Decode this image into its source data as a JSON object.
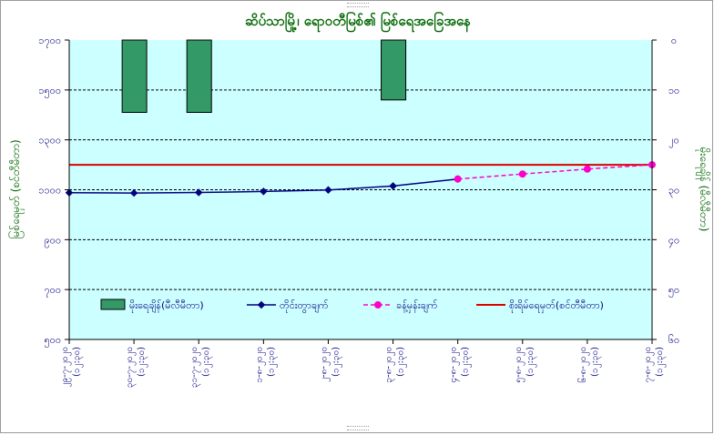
{
  "chart_data": {
    "type": "bar+line",
    "title": "ဆိပ်သာမြို့၊ ရောဝတီမြစ်၏ မြစ်ရေအခြေအနေ",
    "ylabel_left": "မြစ်ရေမှတ် (စင်တီမီတာ)",
    "ylabel_right": "မိုးရေချိန် (မီလီမီတာ)",
    "ylim_left": [
      500,
      1700
    ],
    "ylim_right": [
      60,
      0
    ],
    "left_ticks": [
      "၁၇၀၀",
      "၁၅၀၀",
      "၁၃၀၀",
      "၁၁၀၀",
      "၉၀၀",
      "၇၀၀",
      "၅၀၀"
    ],
    "right_ticks": [
      "၀",
      "၁၀",
      "၂၀",
      "၃၀",
      "၄၀",
      "၅၀",
      "၆၀"
    ],
    "categories": [
      {
        "date": "၂၉-၇-၂၀၂၀",
        "time": "(၁၂:၃၀)"
      },
      {
        "date": "၃၀-၇-၂၀၂၀",
        "time": "(၁၂:၃၀)"
      },
      {
        "date": "၃၁-၇-၂၀၂၀",
        "time": "(၁၂:၃၀)"
      },
      {
        "date": "၁-၈-၂၀၂၀",
        "time": "(၁၂:၃၀)"
      },
      {
        "date": "၂-၈-၂၀၂၀",
        "time": "(၁၂:၃၀)"
      },
      {
        "date": "၃-၈-၂၀၂၀",
        "time": "(၁၂:၃၀)"
      },
      {
        "date": "၄-၈-၂၀၂၀",
        "time": "(၁၂:၃၀)"
      },
      {
        "date": "၅-၈-၂၀၂၀",
        "time": "(၁၂:၃၀)"
      },
      {
        "date": "၆-၈-၂၀၂၀",
        "time": "(၁၂:၃၀)"
      },
      {
        "date": "၇-၈-၂၀၂၀",
        "time": "(၁၂:၃၀)"
      }
    ],
    "series": [
      {
        "name": "မိုးရေချိန်(မီလီမီတာ)",
        "type": "bar",
        "axis": "right",
        "color": "#339966",
        "values": [
          0,
          14.5,
          14.5,
          0,
          0,
          12,
          0,
          0,
          0,
          0
        ]
      },
      {
        "name": "တိုင်းတွာချက်",
        "type": "line",
        "axis": "left",
        "color": "#000080",
        "values": [
          1088,
          1087,
          1089,
          1093,
          1099,
          1115,
          1143,
          null,
          null,
          null
        ]
      },
      {
        "name": "ခန့်မှန်းချက်",
        "type": "line-dashed",
        "axis": "left",
        "color": "#ff00cc",
        "values": [
          null,
          null,
          null,
          null,
          null,
          null,
          1143,
          1163,
          1183,
          1200
        ]
      },
      {
        "name": "စိုးရိမ်ရေမှတ်(စင်တီမီတာ)",
        "type": "hline",
        "axis": "left",
        "color": "#dd0000",
        "value": 1200
      }
    ],
    "legend_position": "inside-bottom",
    "grid": true,
    "plot_background": "#ccffff"
  }
}
